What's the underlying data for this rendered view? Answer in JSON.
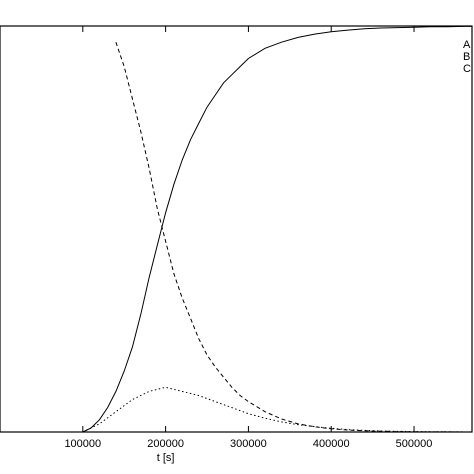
{
  "chart_data": {
    "type": "line",
    "title": "",
    "xlabel": "t [s]",
    "ylabel": "",
    "xlim": [
      0,
      570000
    ],
    "ylim": [
      0,
      1
    ],
    "grid": false,
    "legend_position": "top-right",
    "x_ticks": [
      100000,
      200000,
      300000,
      400000,
      500000
    ],
    "x_tick_labels": [
      "100000",
      "200000",
      "300000",
      "400000",
      "500000"
    ],
    "series": [
      {
        "name": "A",
        "style": "solid",
        "x": [
          100000,
          110000,
          120000,
          130000,
          140000,
          150000,
          160000,
          170000,
          180000,
          190000,
          200000,
          210000,
          220000,
          230000,
          240000,
          250000,
          260000,
          270000,
          280000,
          290000,
          300000,
          320000,
          340000,
          360000,
          380000,
          400000,
          420000,
          440000,
          460000,
          480000,
          500000,
          520000,
          540000,
          560000,
          570000
        ],
        "values": [
          0.0,
          0.01,
          0.03,
          0.06,
          0.1,
          0.15,
          0.21,
          0.29,
          0.38,
          0.46,
          0.54,
          0.61,
          0.67,
          0.72,
          0.76,
          0.8,
          0.83,
          0.86,
          0.88,
          0.9,
          0.92,
          0.945,
          0.96,
          0.972,
          0.98,
          0.986,
          0.99,
          0.993,
          0.995,
          0.996,
          0.997,
          0.998,
          0.998,
          0.999,
          0.999
        ]
      },
      {
        "name": "B",
        "style": "dashed",
        "x": [
          140000,
          150000,
          160000,
          170000,
          180000,
          190000,
          200000,
          210000,
          220000,
          230000,
          240000,
          250000,
          260000,
          270000,
          280000,
          290000,
          300000,
          320000,
          340000,
          360000,
          380000,
          400000,
          420000,
          440000,
          460000,
          480000,
          500000,
          540000,
          570000
        ],
        "values": [
          0.96,
          0.9,
          0.82,
          0.74,
          0.65,
          0.55,
          0.47,
          0.39,
          0.33,
          0.28,
          0.23,
          0.19,
          0.16,
          0.135,
          0.11,
          0.09,
          0.075,
          0.05,
          0.032,
          0.02,
          0.013,
          0.008,
          0.005,
          0.003,
          0.002,
          0.001,
          0.0006,
          0.0002,
          0.0
        ]
      },
      {
        "name": "C",
        "style": "dotted",
        "x": [
          100000,
          120000,
          140000,
          160000,
          180000,
          200000,
          220000,
          240000,
          260000,
          280000,
          300000,
          320000,
          340000,
          360000,
          380000,
          400000,
          420000,
          440000,
          460000,
          500000,
          540000,
          570000
        ],
        "values": [
          0.0,
          0.02,
          0.05,
          0.08,
          0.1,
          0.11,
          0.1,
          0.09,
          0.075,
          0.06,
          0.045,
          0.034,
          0.025,
          0.018,
          0.013,
          0.009,
          0.006,
          0.004,
          0.0025,
          0.001,
          0.0004,
          0.0
        ]
      }
    ]
  }
}
